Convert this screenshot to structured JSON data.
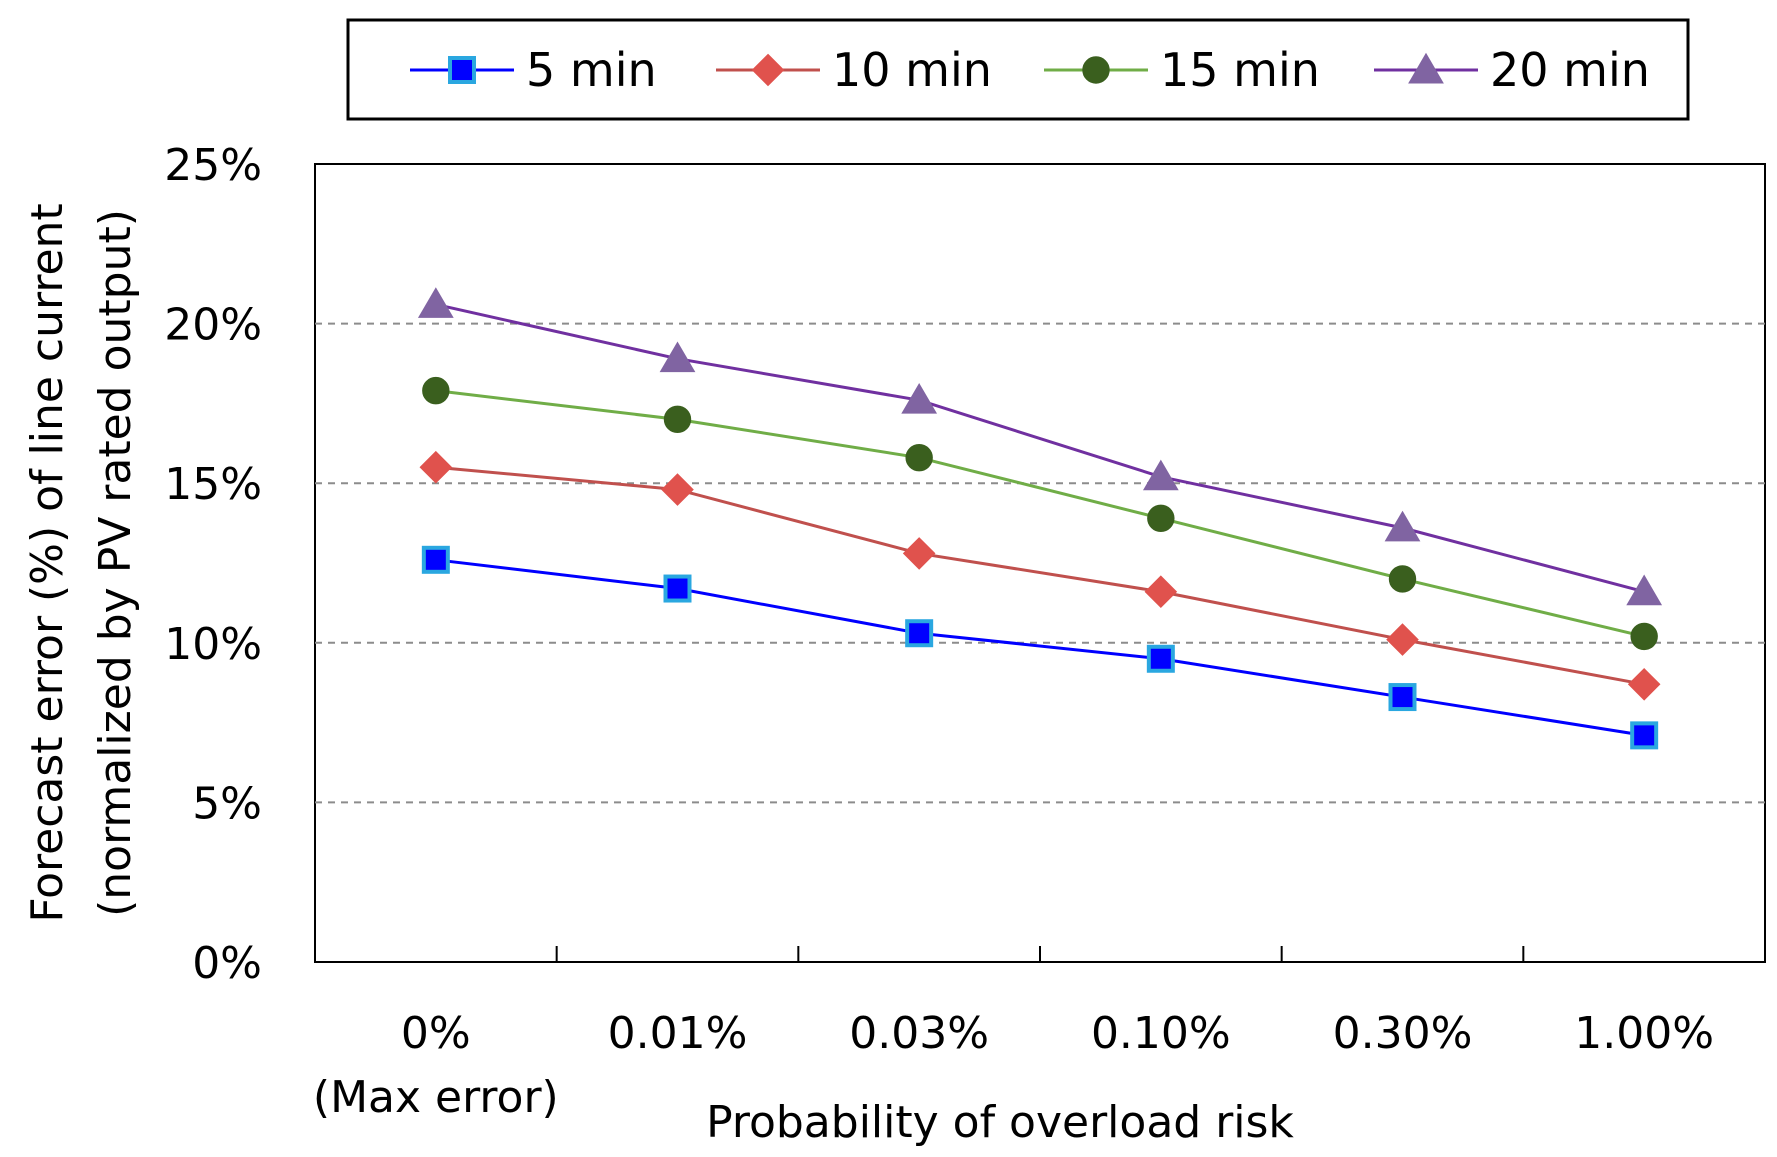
{
  "chart_data": {
    "type": "line",
    "title": "",
    "xlabel": "Probability of overload risk",
    "ylabel_line1": "Forecast error (%) of line current",
    "ylabel_line2": "(normalized by PV rated output)",
    "categories": [
      "0%",
      "0.01%",
      "0.03%",
      "0.10%",
      "0.30%",
      "1.00%"
    ],
    "category_sublabels": [
      "(Max error)",
      "",
      "",
      "",
      "",
      ""
    ],
    "y_tick_labels": [
      "0%",
      "5%",
      "10%",
      "15%",
      "20%",
      "25%"
    ],
    "ylim": [
      0,
      25
    ],
    "y_ticks": [
      0,
      5,
      10,
      15,
      20,
      25
    ],
    "grid": true,
    "legend_position": "top-center",
    "series": [
      {
        "name": "5 min",
        "marker": "square",
        "color": "#0000FF",
        "marker_fill": "#0000FF",
        "marker_edge": "#2AA7E0",
        "values": [
          12.6,
          11.7,
          10.3,
          9.5,
          8.3,
          7.1
        ]
      },
      {
        "name": "10 min",
        "marker": "diamond",
        "color": "#C0504D",
        "marker_fill": "#E0524D",
        "marker_edge": "#E0524D",
        "values": [
          15.5,
          14.8,
          12.8,
          11.6,
          10.1,
          8.7
        ]
      },
      {
        "name": "15 min",
        "marker": "circle",
        "color": "#70AD47",
        "marker_fill": "#3A5F1E",
        "marker_edge": "#3A5F1E",
        "values": [
          17.9,
          17.0,
          15.8,
          13.9,
          12.0,
          10.2
        ]
      },
      {
        "name": "20 min",
        "marker": "triangle",
        "color": "#7030A0",
        "marker_fill": "#8064A2",
        "marker_edge": "#8064A2",
        "values": [
          20.6,
          18.9,
          17.6,
          15.2,
          13.6,
          11.6
        ]
      }
    ]
  }
}
